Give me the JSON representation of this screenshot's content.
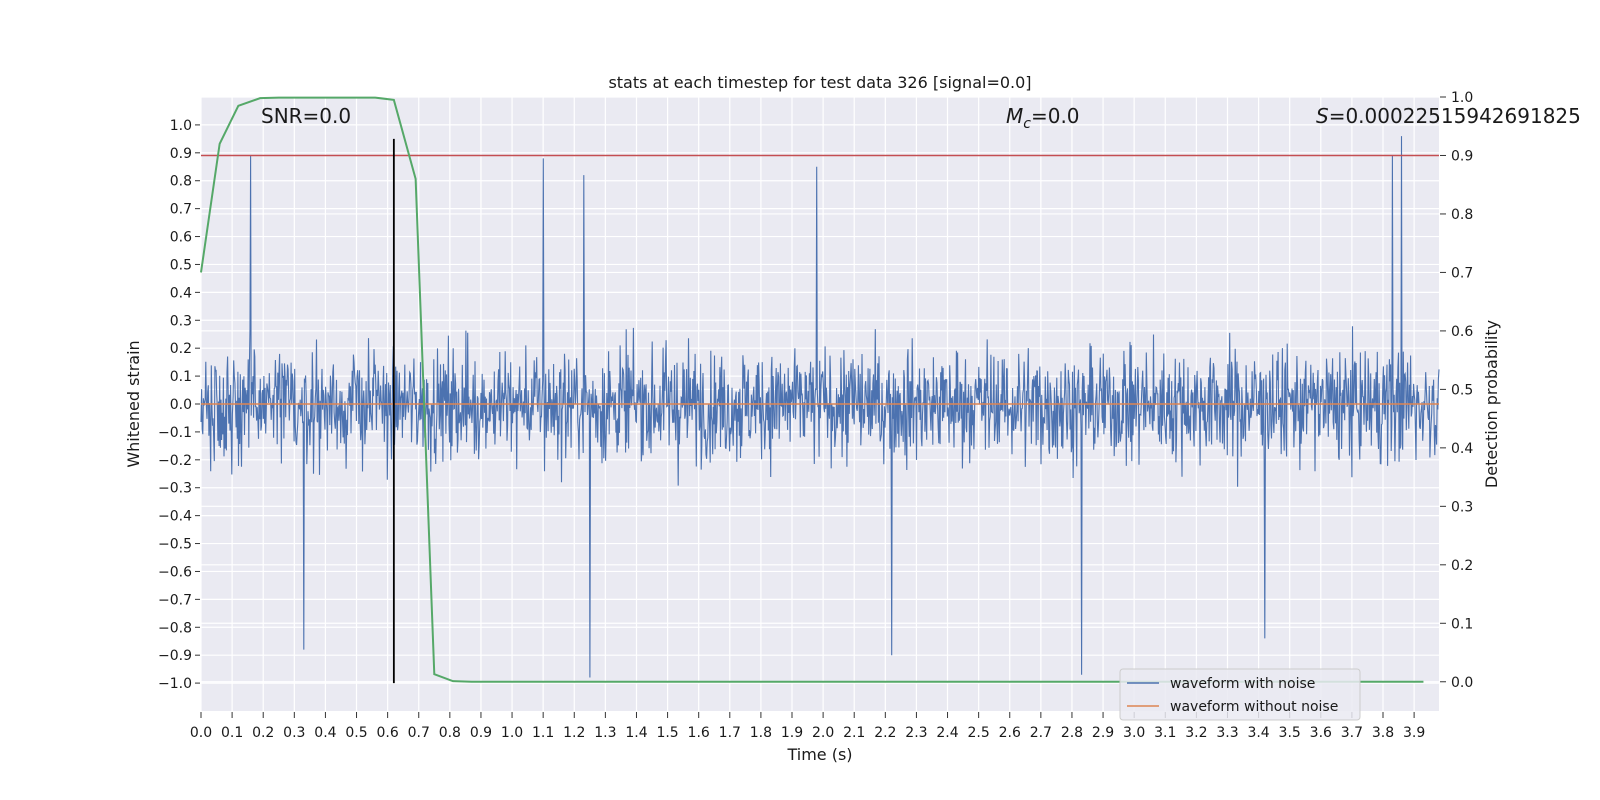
{
  "chart_data": {
    "type": "line",
    "title": "stats at each timestep for test data 326 [signal=0.0]",
    "xlabel": "Time (s)",
    "ylabel": "Whitened strain",
    "y2label": "Detection probability",
    "xlim": [
      0.0,
      3.98
    ],
    "ylim": [
      -1.1,
      1.1
    ],
    "y2lim": [
      -0.05,
      1.0
    ],
    "x_ticks": [
      "0.0",
      "0.1",
      "0.2",
      "0.3",
      "0.4",
      "0.5",
      "0.6",
      "0.7",
      "0.8",
      "0.9",
      "1.0",
      "1.1",
      "1.2",
      "1.3",
      "1.4",
      "1.5",
      "1.6",
      "1.7",
      "1.8",
      "1.9",
      "2.0",
      "2.1",
      "2.2",
      "2.3",
      "2.4",
      "2.5",
      "2.6",
      "2.7",
      "2.8",
      "2.9",
      "3.0",
      "3.1",
      "3.2",
      "3.3",
      "3.4",
      "3.5",
      "3.6",
      "3.7",
      "3.8",
      "3.9"
    ],
    "y_ticks": [
      "1.0",
      "0.9",
      "0.8",
      "0.7",
      "0.6",
      "0.5",
      "0.4",
      "0.3",
      "0.2",
      "0.1",
      "0.0",
      "-0.1",
      "-0.2",
      "-0.3",
      "-0.4",
      "-0.5",
      "-0.6",
      "-0.7",
      "-0.8",
      "-0.9",
      "-1.0"
    ],
    "y2_ticks": [
      "1.0",
      "0.9",
      "0.8",
      "0.7",
      "0.6",
      "0.5",
      "0.4",
      "0.3",
      "0.2",
      "0.1",
      "0.0"
    ],
    "grid": true,
    "legend_position": "bottom-right",
    "series": [
      {
        "name": "waveform with noise",
        "axis": "left",
        "color": "#4c72b0",
        "kind": "noise",
        "n_samples": 2048,
        "approx_envelope": [
          -0.98,
          0.96
        ],
        "approx_peaks": [
          {
            "x": 0.16,
            "y": 0.89
          },
          {
            "x": 1.1,
            "y": 0.88
          },
          {
            "x": 1.23,
            "y": 0.82
          },
          {
            "x": 1.98,
            "y": 0.85
          },
          {
            "x": 3.86,
            "y": 0.96
          },
          {
            "x": 3.83,
            "y": 0.89
          },
          {
            "x": 1.25,
            "y": -0.98
          },
          {
            "x": 2.83,
            "y": -0.97
          },
          {
            "x": 2.22,
            "y": -0.9
          },
          {
            "x": 0.33,
            "y": -0.88
          },
          {
            "x": 3.42,
            "y": -0.84
          }
        ]
      },
      {
        "name": "waveform without noise",
        "axis": "left",
        "color": "#dd8452",
        "x": [
          0.0,
          3.98
        ],
        "y": [
          0.0,
          0.0
        ]
      },
      {
        "name": "",
        "axis": "right",
        "color": "#55a868",
        "x": [
          0.0,
          0.06,
          0.12,
          0.19,
          0.25,
          0.31,
          0.37,
          0.44,
          0.5,
          0.56,
          0.62,
          0.69,
          0.75,
          0.81,
          0.87,
          0.94,
          1.0,
          1.5,
          2.0,
          2.5,
          3.0,
          3.5,
          3.93
        ],
        "y": [
          0.7,
          0.92,
          0.985,
          0.998,
          0.999,
          0.999,
          0.999,
          0.999,
          0.999,
          0.999,
          0.995,
          0.86,
          0.013,
          0.001,
          0.0,
          0.0,
          0.0,
          0.0,
          0.0,
          0.0,
          0.0,
          0.0,
          0.0
        ]
      }
    ],
    "hlines": [
      {
        "axis": "right",
        "y": 0.9,
        "color": "#c44e52"
      }
    ],
    "vlines": [
      {
        "x": 0.62,
        "from": -1.0,
        "to": 0.95,
        "color": "#000000"
      }
    ],
    "annotations": {
      "snr": "SNR=0.0",
      "mc_symbol": "M",
      "mc_sub": "c",
      "mc_value": "=0.0",
      "s_symbol": "S",
      "s_value": "=0.00022515942691825"
    }
  }
}
